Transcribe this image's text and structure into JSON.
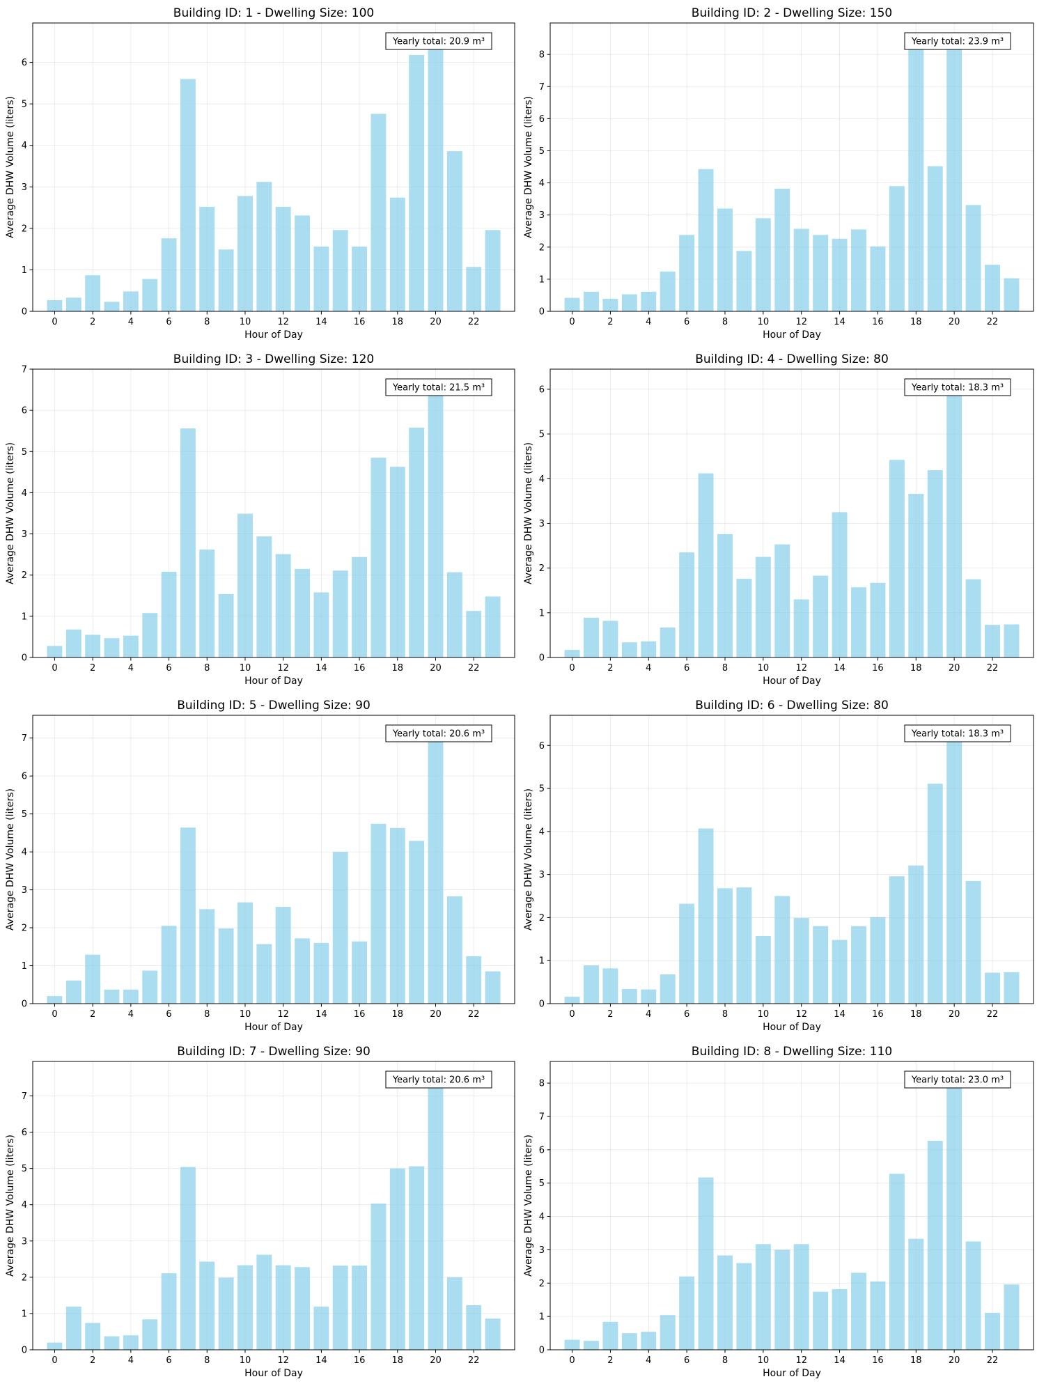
{
  "chart_data": [
    {
      "type": "bar",
      "title": "Building ID: 1 - Dwelling Size: 100",
      "xlabel": "Hour of Day",
      "ylabel": "Average DHW Volume (liters)",
      "x": [
        0,
        1,
        2,
        3,
        4,
        5,
        6,
        7,
        8,
        9,
        10,
        11,
        12,
        13,
        14,
        15,
        16,
        17,
        18,
        19,
        20,
        21,
        22,
        23
      ],
      "values": [
        0.27,
        0.33,
        0.87,
        0.23,
        0.48,
        0.78,
        1.76,
        5.6,
        2.52,
        1.49,
        2.78,
        3.12,
        2.52,
        2.31,
        1.56,
        1.96,
        1.56,
        4.76,
        2.74,
        6.18,
        6.38,
        3.86,
        1.07,
        1.96
      ],
      "xticks": [
        0,
        2,
        4,
        6,
        8,
        10,
        12,
        14,
        16,
        18,
        20,
        22
      ],
      "yticks": [
        0,
        1,
        2,
        3,
        4,
        5,
        6
      ],
      "ylim": [
        0,
        6.95
      ],
      "annotation": "Yearly total: 20.9 m³",
      "color": "#87ceeb",
      "grid": true
    },
    {
      "type": "bar",
      "title": "Building ID: 2 - Dwelling Size: 150",
      "xlabel": "Hour of Day",
      "ylabel": "Average DHW Volume (liters)",
      "x": [
        0,
        1,
        2,
        3,
        4,
        5,
        6,
        7,
        8,
        9,
        10,
        11,
        12,
        13,
        14,
        15,
        16,
        17,
        18,
        19,
        20,
        21,
        22,
        23
      ],
      "values": [
        0.42,
        0.61,
        0.39,
        0.53,
        0.61,
        1.24,
        2.38,
        4.43,
        3.2,
        1.88,
        2.9,
        3.82,
        2.57,
        2.38,
        2.26,
        2.55,
        2.02,
        3.9,
        8.55,
        4.52,
        8.3,
        3.31,
        1.45,
        1.03
      ],
      "xticks": [
        0,
        2,
        4,
        6,
        8,
        10,
        12,
        14,
        16,
        18,
        20,
        22
      ],
      "yticks": [
        0,
        1,
        2,
        3,
        4,
        5,
        6,
        7,
        8
      ],
      "ylim": [
        0,
        8.98
      ],
      "annotation": "Yearly total: 23.9 m³",
      "color": "#87ceeb",
      "grid": true
    },
    {
      "type": "bar",
      "title": "Building ID: 3 - Dwelling Size: 120",
      "xlabel": "Hour of Day",
      "ylabel": "Average DHW Volume (liters)",
      "x": [
        0,
        1,
        2,
        3,
        4,
        5,
        6,
        7,
        8,
        9,
        10,
        11,
        12,
        13,
        14,
        15,
        16,
        17,
        18,
        19,
        20,
        21,
        22,
        23
      ],
      "values": [
        0.28,
        0.68,
        0.55,
        0.47,
        0.53,
        1.08,
        2.08,
        5.56,
        2.62,
        1.54,
        3.49,
        2.94,
        2.51,
        2.15,
        1.58,
        2.11,
        2.44,
        4.85,
        4.63,
        5.58,
        6.57,
        2.07,
        1.13,
        1.48
      ],
      "xticks": [
        0,
        2,
        4,
        6,
        8,
        10,
        12,
        14,
        16,
        18,
        20,
        22
      ],
      "yticks": [
        0,
        1,
        2,
        3,
        4,
        5,
        6,
        7
      ],
      "ylim": [
        0,
        7.0
      ],
      "annotation": "Yearly total: 21.5 m³",
      "color": "#87ceeb",
      "grid": true
    },
    {
      "type": "bar",
      "title": "Building ID: 4 - Dwelling Size: 80",
      "xlabel": "Hour of Day",
      "ylabel": "Average DHW Volume (liters)",
      "x": [
        0,
        1,
        2,
        3,
        4,
        5,
        6,
        7,
        8,
        9,
        10,
        11,
        12,
        13,
        14,
        15,
        16,
        17,
        18,
        19,
        20,
        21,
        22,
        23
      ],
      "values": [
        0.17,
        0.89,
        0.82,
        0.34,
        0.36,
        0.67,
        2.35,
        4.12,
        2.76,
        1.76,
        2.25,
        2.53,
        1.3,
        1.83,
        3.25,
        1.57,
        1.67,
        4.42,
        3.66,
        4.19,
        5.88,
        1.75,
        0.73,
        0.74
      ],
      "xticks": [
        0,
        2,
        4,
        6,
        8,
        10,
        12,
        14,
        16,
        18,
        20,
        22
      ],
      "yticks": [
        0,
        1,
        2,
        3,
        4,
        5,
        6
      ],
      "ylim": [
        0,
        6.45
      ],
      "annotation": "Yearly total: 18.3 m³",
      "color": "#87ceeb",
      "grid": true
    },
    {
      "type": "bar",
      "title": "Building ID: 5 - Dwelling Size: 90",
      "xlabel": "Hour of Day",
      "ylabel": "Average DHW Volume (liters)",
      "x": [
        0,
        1,
        2,
        3,
        4,
        5,
        6,
        7,
        8,
        9,
        10,
        11,
        12,
        13,
        14,
        15,
        16,
        17,
        18,
        19,
        20,
        21,
        22,
        23
      ],
      "values": [
        0.2,
        0.61,
        1.29,
        0.37,
        0.37,
        0.87,
        2.05,
        4.64,
        2.49,
        1.98,
        2.67,
        1.57,
        2.55,
        1.72,
        1.6,
        4.0,
        1.64,
        4.74,
        4.63,
        4.29,
        7.25,
        2.83,
        1.25,
        0.85
      ],
      "xticks": [
        0,
        2,
        4,
        6,
        8,
        10,
        12,
        14,
        16,
        18,
        20,
        22
      ],
      "yticks": [
        0,
        1,
        2,
        3,
        4,
        5,
        6,
        7
      ],
      "ylim": [
        0,
        7.6
      ],
      "annotation": "Yearly total: 20.6 m³",
      "color": "#87ceeb",
      "grid": true
    },
    {
      "type": "bar",
      "title": "Building ID: 6 - Dwelling Size: 80",
      "xlabel": "Hour of Day",
      "ylabel": "Average DHW Volume (liters)",
      "x": [
        0,
        1,
        2,
        3,
        4,
        5,
        6,
        7,
        8,
        9,
        10,
        11,
        12,
        13,
        14,
        15,
        16,
        17,
        18,
        19,
        20,
        21,
        22,
        23
      ],
      "values": [
        0.16,
        0.89,
        0.82,
        0.34,
        0.33,
        0.68,
        2.32,
        4.07,
        2.68,
        2.7,
        1.57,
        2.5,
        1.99,
        1.8,
        1.48,
        1.8,
        2.01,
        2.96,
        3.21,
        5.11,
        6.33,
        2.85,
        0.72,
        0.73
      ],
      "xticks": [
        0,
        2,
        4,
        6,
        8,
        10,
        12,
        14,
        16,
        18,
        20,
        22
      ],
      "yticks": [
        0,
        1,
        2,
        3,
        4,
        5,
        6
      ],
      "ylim": [
        0,
        6.7
      ],
      "annotation": "Yearly total: 18.3 m³",
      "color": "#87ceeb",
      "grid": true
    },
    {
      "type": "bar",
      "title": "Building ID: 7 - Dwelling Size: 90",
      "xlabel": "Hour of Day",
      "ylabel": "Average DHW Volume (liters)",
      "x": [
        0,
        1,
        2,
        3,
        4,
        5,
        6,
        7,
        8,
        9,
        10,
        11,
        12,
        13,
        14,
        15,
        16,
        17,
        18,
        19,
        20,
        21,
        22,
        23
      ],
      "values": [
        0.2,
        1.19,
        0.74,
        0.37,
        0.4,
        0.84,
        2.11,
        5.04,
        2.43,
        1.99,
        2.33,
        2.62,
        2.33,
        2.28,
        1.19,
        2.32,
        2.32,
        4.03,
        5.0,
        5.06,
        7.58,
        2.0,
        1.23,
        0.86
      ],
      "xticks": [
        0,
        2,
        4,
        6,
        8,
        10,
        12,
        14,
        16,
        18,
        20,
        22
      ],
      "yticks": [
        0,
        1,
        2,
        3,
        4,
        5,
        6,
        7
      ],
      "ylim": [
        0,
        7.95
      ],
      "annotation": "Yearly total: 20.6 m³",
      "color": "#87ceeb",
      "grid": true
    },
    {
      "type": "bar",
      "title": "Building ID: 8 - Dwelling Size: 110",
      "xlabel": "Hour of Day",
      "ylabel": "Average DHW Volume (liters)",
      "x": [
        0,
        1,
        2,
        3,
        4,
        5,
        6,
        7,
        8,
        9,
        10,
        11,
        12,
        13,
        14,
        15,
        16,
        17,
        18,
        19,
        20,
        21,
        22,
        23
      ],
      "values": [
        0.3,
        0.27,
        0.84,
        0.5,
        0.54,
        1.04,
        2.2,
        5.17,
        2.83,
        2.6,
        3.17,
        3.0,
        3.17,
        1.74,
        1.82,
        2.31,
        2.05,
        5.28,
        3.33,
        6.27,
        8.23,
        3.25,
        1.11,
        1.96
      ],
      "xticks": [
        0,
        2,
        4,
        6,
        8,
        10,
        12,
        14,
        16,
        18,
        20,
        22
      ],
      "yticks": [
        0,
        1,
        2,
        3,
        4,
        5,
        6,
        7,
        8
      ],
      "ylim": [
        0,
        8.65
      ],
      "annotation": "Yearly total: 23.0 m³",
      "color": "#87ceeb",
      "grid": true
    }
  ]
}
